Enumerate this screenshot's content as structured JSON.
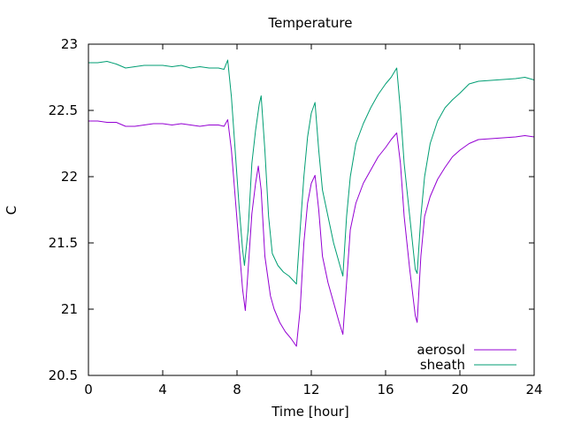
{
  "chart_data": {
    "type": "line",
    "title": "Temperature",
    "xlabel": "Time [hour]",
    "ylabel": "C",
    "xlim": [
      0,
      24
    ],
    "ylim": [
      20.5,
      23
    ],
    "xticks": [
      0,
      4,
      8,
      12,
      16,
      20,
      24
    ],
    "yticks": [
      20.5,
      21,
      21.5,
      22,
      22.5,
      23
    ],
    "ytick_labels": [
      "20.5",
      "21",
      "21.5",
      "22",
      "22.5",
      "23"
    ],
    "grid": false,
    "legend_position": "bottom-right",
    "series": [
      {
        "name": "aerosol",
        "color": "#9400d3",
        "points": [
          [
            0,
            22.42
          ],
          [
            0.5,
            22.42
          ],
          [
            1,
            22.41
          ],
          [
            1.5,
            22.41
          ],
          [
            2,
            22.38
          ],
          [
            2.5,
            22.38
          ],
          [
            3,
            22.39
          ],
          [
            3.5,
            22.4
          ],
          [
            4,
            22.4
          ],
          [
            4.5,
            22.39
          ],
          [
            5,
            22.4
          ],
          [
            5.5,
            22.39
          ],
          [
            6,
            22.38
          ],
          [
            6.5,
            22.39
          ],
          [
            7,
            22.39
          ],
          [
            7.3,
            22.38
          ],
          [
            7.5,
            22.43
          ],
          [
            7.7,
            22.2
          ],
          [
            7.9,
            21.85
          ],
          [
            8.1,
            21.5
          ],
          [
            8.3,
            21.15
          ],
          [
            8.45,
            20.99
          ],
          [
            8.6,
            21.3
          ],
          [
            8.8,
            21.72
          ],
          [
            9.0,
            21.95
          ],
          [
            9.15,
            22.08
          ],
          [
            9.3,
            21.9
          ],
          [
            9.5,
            21.4
          ],
          [
            9.8,
            21.1
          ],
          [
            10.0,
            21.0
          ],
          [
            10.3,
            20.9
          ],
          [
            10.6,
            20.83
          ],
          [
            10.9,
            20.78
          ],
          [
            11.2,
            20.72
          ],
          [
            11.4,
            21.0
          ],
          [
            11.6,
            21.5
          ],
          [
            11.8,
            21.8
          ],
          [
            12.0,
            21.95
          ],
          [
            12.2,
            22.01
          ],
          [
            12.4,
            21.75
          ],
          [
            12.6,
            21.4
          ],
          [
            12.9,
            21.2
          ],
          [
            13.2,
            21.05
          ],
          [
            13.5,
            20.9
          ],
          [
            13.7,
            20.81
          ],
          [
            13.9,
            21.2
          ],
          [
            14.1,
            21.6
          ],
          [
            14.4,
            21.8
          ],
          [
            14.8,
            21.95
          ],
          [
            15.2,
            22.05
          ],
          [
            15.6,
            22.15
          ],
          [
            16.0,
            22.22
          ],
          [
            16.3,
            22.28
          ],
          [
            16.6,
            22.33
          ],
          [
            16.8,
            22.1
          ],
          [
            17.0,
            21.7
          ],
          [
            17.3,
            21.3
          ],
          [
            17.6,
            20.95
          ],
          [
            17.7,
            20.9
          ],
          [
            17.9,
            21.4
          ],
          [
            18.1,
            21.7
          ],
          [
            18.4,
            21.85
          ],
          [
            18.8,
            21.98
          ],
          [
            19.2,
            22.07
          ],
          [
            19.6,
            22.15
          ],
          [
            20.0,
            22.2
          ],
          [
            20.5,
            22.25
          ],
          [
            21.0,
            22.28
          ],
          [
            22.0,
            22.29
          ],
          [
            23.0,
            22.3
          ],
          [
            23.5,
            22.31
          ],
          [
            24,
            22.3
          ]
        ]
      },
      {
        "name": "sheath",
        "color": "#009e73",
        "points": [
          [
            0,
            22.86
          ],
          [
            0.5,
            22.86
          ],
          [
            1,
            22.87
          ],
          [
            1.5,
            22.85
          ],
          [
            2,
            22.82
          ],
          [
            2.5,
            22.83
          ],
          [
            3,
            22.84
          ],
          [
            3.5,
            22.84
          ],
          [
            4,
            22.84
          ],
          [
            4.5,
            22.83
          ],
          [
            5,
            22.84
          ],
          [
            5.5,
            22.82
          ],
          [
            6,
            22.83
          ],
          [
            6.5,
            22.82
          ],
          [
            7,
            22.82
          ],
          [
            7.3,
            22.81
          ],
          [
            7.5,
            22.88
          ],
          [
            7.7,
            22.6
          ],
          [
            7.9,
            22.2
          ],
          [
            8.1,
            21.8
          ],
          [
            8.3,
            21.45
          ],
          [
            8.4,
            21.33
          ],
          [
            8.6,
            21.6
          ],
          [
            8.8,
            22.1
          ],
          [
            9.0,
            22.35
          ],
          [
            9.2,
            22.55
          ],
          [
            9.3,
            22.61
          ],
          [
            9.5,
            22.2
          ],
          [
            9.7,
            21.7
          ],
          [
            9.9,
            21.42
          ],
          [
            10.2,
            21.33
          ],
          [
            10.5,
            21.28
          ],
          [
            10.8,
            21.25
          ],
          [
            11.2,
            21.19
          ],
          [
            11.4,
            21.6
          ],
          [
            11.6,
            22.0
          ],
          [
            11.8,
            22.3
          ],
          [
            12.0,
            22.48
          ],
          [
            12.2,
            22.56
          ],
          [
            12.4,
            22.2
          ],
          [
            12.6,
            21.9
          ],
          [
            12.9,
            21.7
          ],
          [
            13.2,
            21.5
          ],
          [
            13.5,
            21.35
          ],
          [
            13.7,
            21.25
          ],
          [
            13.9,
            21.7
          ],
          [
            14.1,
            22.0
          ],
          [
            14.4,
            22.25
          ],
          [
            14.8,
            22.4
          ],
          [
            15.2,
            22.52
          ],
          [
            15.6,
            22.62
          ],
          [
            16.0,
            22.7
          ],
          [
            16.3,
            22.75
          ],
          [
            16.6,
            22.82
          ],
          [
            16.8,
            22.5
          ],
          [
            17.0,
            22.1
          ],
          [
            17.3,
            21.7
          ],
          [
            17.6,
            21.3
          ],
          [
            17.7,
            21.27
          ],
          [
            17.9,
            21.7
          ],
          [
            18.1,
            22.0
          ],
          [
            18.4,
            22.25
          ],
          [
            18.8,
            22.42
          ],
          [
            19.2,
            22.52
          ],
          [
            19.6,
            22.58
          ],
          [
            20.0,
            22.63
          ],
          [
            20.5,
            22.7
          ],
          [
            21.0,
            22.72
          ],
          [
            22.0,
            22.73
          ],
          [
            23.0,
            22.74
          ],
          [
            23.5,
            22.75
          ],
          [
            24,
            22.73
          ]
        ]
      }
    ]
  }
}
